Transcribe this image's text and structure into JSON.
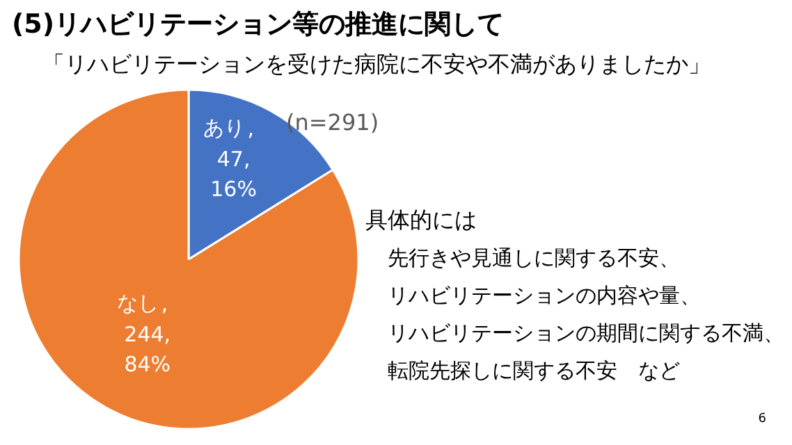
{
  "chart_data": {
    "type": "pie",
    "title": "(5)リハビリテーション等の推進に関して",
    "subtitle": "「リハビリテーションを受けた病院に不安や不満がありましたか」",
    "categories": [
      "あり",
      "なし"
    ],
    "values": [
      47,
      244
    ],
    "colors": [
      "#4472c4",
      "#ed7d31"
    ],
    "value_labels": [
      ",\n47,\n16%",
      ",\n244,\n84%"
    ],
    "annotations": [
      "(n=291)",
      "具体的には",
      "先行きや見通しに関する不安、",
      "リハビリテーションの内容や量、",
      "リハビリテーションの期間に関する不満、",
      "転院先探しに関する不安　など",
      "6"
    ]
  }
}
